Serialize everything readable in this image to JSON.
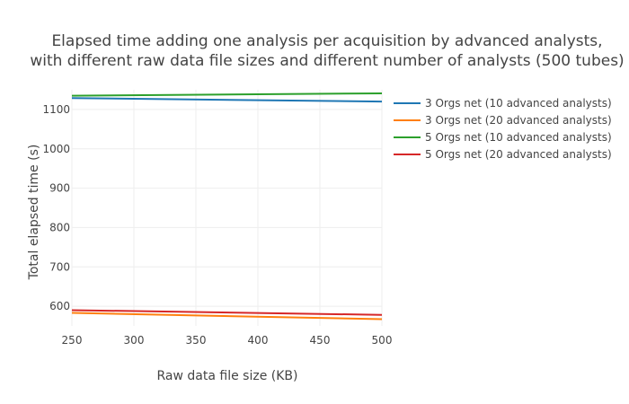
{
  "chart_data": {
    "type": "line",
    "title_lines": [
      "Elapsed time adding one analysis per acquisition by advanced analysts,",
      "with different raw data file sizes and different number of analysts (500 tubes)"
    ],
    "xlabel": "Raw data file size (KB)",
    "ylabel": "Total elapsed time (s)",
    "xlim": [
      250,
      500
    ],
    "ylim": [
      550,
      1150
    ],
    "x_ticks": [
      250,
      300,
      350,
      400,
      450,
      500
    ],
    "y_ticks": [
      600,
      700,
      800,
      900,
      1000,
      1100
    ],
    "grid": true,
    "legend_position": "right",
    "x": [
      250,
      500
    ],
    "series": [
      {
        "name": "3 Orgs net (10 advanced analysts)",
        "color": "#1f77b4",
        "values": [
          1129,
          1120
        ]
      },
      {
        "name": "3 Orgs net (20 advanced analysts)",
        "color": "#ff7f0e",
        "values": [
          583,
          567
        ]
      },
      {
        "name": "5 Orgs net (10 advanced analysts)",
        "color": "#2ca02c",
        "values": [
          1135,
          1141
        ]
      },
      {
        "name": "5 Orgs net (20 advanced analysts)",
        "color": "#d62728",
        "values": [
          590,
          578
        ]
      }
    ]
  }
}
